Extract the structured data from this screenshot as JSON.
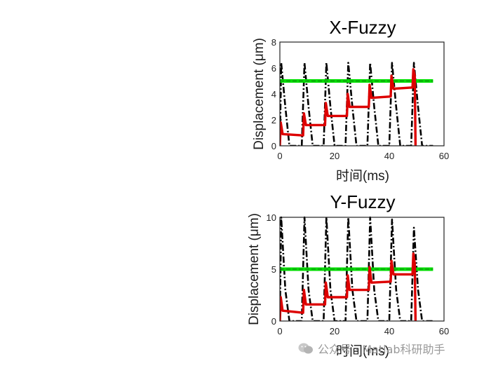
{
  "chart_data": [
    {
      "type": "line",
      "title": "X-Fuzzy",
      "xlabel": "时间(ms)",
      "ylabel": "Displacement (μm)",
      "xlim": [
        0,
        60
      ],
      "ylim": [
        0,
        8
      ],
      "xticks": [
        "0",
        "20",
        "40",
        "60"
      ],
      "yticks": [
        "0",
        "2",
        "4",
        "6",
        "8"
      ],
      "grid": false,
      "series": [
        {
          "style": "dash-dot",
          "color": "#000000",
          "points": [
            [
              0,
              0
            ],
            [
              0.5,
              6.4
            ],
            [
              2,
              3.0
            ],
            [
              3.5,
              0
            ],
            [
              8,
              0
            ],
            [
              9,
              6.4
            ],
            [
              10.5,
              3.0
            ],
            [
              12,
              0
            ],
            [
              16,
              0
            ],
            [
              17,
              6.4
            ],
            [
              18.5,
              3.0
            ],
            [
              20,
              0
            ],
            [
              24,
              0
            ],
            [
              25,
              6.4
            ],
            [
              26.5,
              3.0
            ],
            [
              28,
              0
            ],
            [
              32,
              0
            ],
            [
              33,
              6.4
            ],
            [
              34.5,
              3.0
            ],
            [
              36,
              0
            ],
            [
              40,
              0
            ],
            [
              41,
              6.4
            ],
            [
              42.5,
              3.0
            ],
            [
              44,
              0
            ],
            [
              48,
              0
            ],
            [
              49,
              6.4
            ],
            [
              50.5,
              3.0
            ],
            [
              52,
              0
            ],
            [
              56,
              0
            ]
          ]
        },
        {
          "style": "solid",
          "color": "#00dd00",
          "points": [
            [
              0,
              5.0
            ],
            [
              56,
              5.0
            ]
          ]
        },
        {
          "style": "solid",
          "color": "#dd0000",
          "points": [
            [
              0,
              0
            ],
            [
              0.3,
              1.8
            ],
            [
              1.0,
              0.9
            ],
            [
              8.5,
              0.8
            ],
            [
              8.8,
              2.5
            ],
            [
              9.5,
              1.6
            ],
            [
              16.5,
              1.6
            ],
            [
              16.8,
              3.3
            ],
            [
              17.5,
              2.3
            ],
            [
              24.5,
              2.3
            ],
            [
              24.8,
              4.0
            ],
            [
              25.5,
              3.0
            ],
            [
              32.5,
              3.0
            ],
            [
              32.8,
              4.7
            ],
            [
              33.5,
              3.7
            ],
            [
              40.5,
              3.8
            ],
            [
              40.8,
              5.4
            ],
            [
              41.5,
              4.4
            ],
            [
              48.5,
              4.5
            ],
            [
              48.8,
              5.9
            ],
            [
              49.3,
              5.4
            ],
            [
              49.6,
              0
            ]
          ]
        }
      ]
    },
    {
      "type": "line",
      "title": "Y-Fuzzy",
      "xlabel": "时间(ms)",
      "ylabel": "Displacement (μm)",
      "xlim": [
        0,
        60
      ],
      "ylim": [
        0,
        10
      ],
      "xticks": [
        "0",
        "20",
        "40",
        "60"
      ],
      "yticks": [
        "0",
        "5",
        "10"
      ],
      "grid": false,
      "series": [
        {
          "style": "dash-dot",
          "color": "#000000",
          "points": [
            [
              0,
              0
            ],
            [
              0.5,
              10
            ],
            [
              2,
              3.0
            ],
            [
              3.5,
              0
            ],
            [
              8,
              0
            ],
            [
              9,
              10
            ],
            [
              10.5,
              3.0
            ],
            [
              12,
              0
            ],
            [
              16,
              0
            ],
            [
              17,
              10
            ],
            [
              18.5,
              3.0
            ],
            [
              20,
              0
            ],
            [
              24,
              0
            ],
            [
              25,
              10
            ],
            [
              26.5,
              3.0
            ],
            [
              28,
              0
            ],
            [
              32,
              0
            ],
            [
              33,
              10
            ],
            [
              34.5,
              3.0
            ],
            [
              36,
              0
            ],
            [
              40,
              0
            ],
            [
              41,
              9.8
            ],
            [
              42.5,
              3.0
            ],
            [
              44,
              0
            ],
            [
              48,
              0
            ],
            [
              49,
              9.0
            ],
            [
              50.5,
              3.0
            ],
            [
              52,
              0
            ],
            [
              56,
              0
            ]
          ]
        },
        {
          "style": "solid",
          "color": "#00dd00",
          "points": [
            [
              0,
              5.0
            ],
            [
              56,
              5.0
            ]
          ]
        },
        {
          "style": "solid",
          "color": "#dd0000",
          "points": [
            [
              0,
              0
            ],
            [
              0.3,
              2.3
            ],
            [
              1.0,
              1.0
            ],
            [
              8.5,
              0.8
            ],
            [
              8.8,
              3.0
            ],
            [
              9.5,
              1.6
            ],
            [
              16.5,
              1.6
            ],
            [
              16.8,
              3.7
            ],
            [
              17.5,
              2.3
            ],
            [
              24.5,
              2.3
            ],
            [
              24.8,
              4.4
            ],
            [
              25.5,
              3.0
            ],
            [
              32.5,
              3.0
            ],
            [
              32.8,
              5.2
            ],
            [
              33.5,
              3.7
            ],
            [
              40.5,
              3.8
            ],
            [
              40.8,
              5.8
            ],
            [
              41.5,
              4.5
            ],
            [
              48.5,
              4.5
            ],
            [
              48.8,
              6.5
            ],
            [
              49.3,
              5.5
            ],
            [
              49.6,
              0
            ]
          ]
        }
      ]
    }
  ],
  "watermark": {
    "text": "公众号 · Matlab科研助手",
    "logo_icon": "wechat-logo"
  }
}
